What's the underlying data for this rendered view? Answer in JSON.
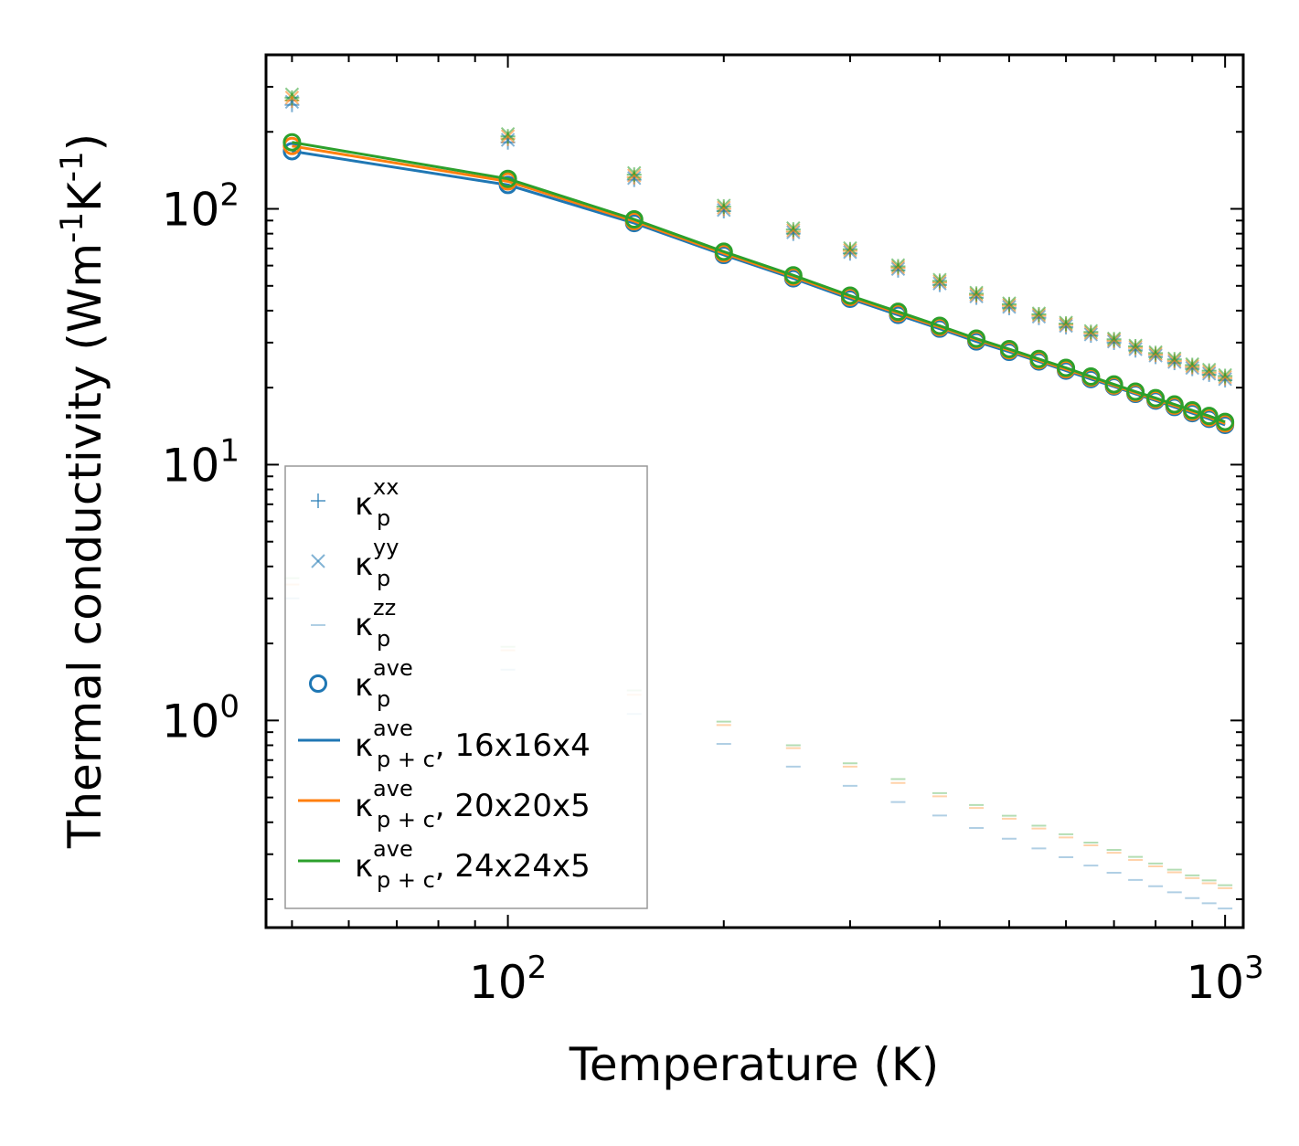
{
  "chart_data": {
    "type": "scatter",
    "scale": {
      "x": "log",
      "y": "log"
    },
    "xlim": [
      46,
      1060
    ],
    "ylim": [
      0.155,
      400
    ],
    "xlabel": "Temperature (K)",
    "ylabel": "Thermal conductivity (Wm",
    "ylabel_unit_parts": [
      "-1",
      "K",
      "-1",
      ")"
    ],
    "x_ticks": [
      {
        "value": 100,
        "base": "10",
        "exp": "2"
      },
      {
        "value": 1000,
        "base": "10",
        "exp": "3"
      }
    ],
    "y_ticks": [
      {
        "value": 1,
        "base": "10",
        "exp": "0"
      },
      {
        "value": 10,
        "base": "10",
        "exp": "1"
      },
      {
        "value": 100,
        "base": "10",
        "exp": "2"
      }
    ],
    "temperatures": [
      50,
      100,
      150,
      200,
      250,
      300,
      350,
      400,
      450,
      500,
      550,
      600,
      650,
      700,
      750,
      800,
      850,
      900,
      950,
      1000
    ],
    "ave_series": [
      {
        "name": "16x16x4",
        "color": "#1f77b4",
        "values": [
          168,
          124,
          88,
          66,
          53.5,
          44.5,
          38.5,
          34,
          30.3,
          27.6,
          25.3,
          23.3,
          21.6,
          20.2,
          18.9,
          17.8,
          16.8,
          15.9,
          15.1,
          14.3
        ]
      },
      {
        "name": "20x20x5",
        "color": "#ff7f0e",
        "values": [
          176,
          128,
          89.5,
          67,
          54.3,
          45.2,
          39.1,
          34.5,
          30.8,
          28,
          25.6,
          23.6,
          21.9,
          20.4,
          19.1,
          18,
          17,
          16.1,
          15.3,
          14.5
        ]
      },
      {
        "name": "24x24x5",
        "color": "#2ca02c",
        "values": [
          182,
          131,
          91,
          68,
          55,
          45.8,
          39.6,
          34.9,
          31.1,
          28.3,
          25.9,
          23.9,
          22.1,
          20.6,
          19.3,
          18.2,
          17.2,
          16.3,
          15.5,
          14.7
        ]
      }
    ],
    "kxx": [
      [
        255,
        182,
        130,
        98,
        80,
        67,
        57.5,
        50.5,
        45,
        41,
        37.5,
        34.5,
        32,
        30,
        28,
        26.4,
        25,
        23.7,
        22.5,
        21.4
      ],
      [
        265,
        188,
        133,
        100,
        81.5,
        68.5,
        58.8,
        51.6,
        46,
        41.8,
        38.2,
        35.2,
        32.6,
        30.5,
        28.6,
        26.9,
        25.4,
        24.1,
        22.9,
        21.8
      ],
      [
        272,
        192,
        136,
        102,
        83,
        69.5,
        59.6,
        52.3,
        46.6,
        42.4,
        38.7,
        35.6,
        33,
        30.9,
        29,
        27.3,
        25.8,
        24.5,
        23.3,
        22.2
      ]
    ],
    "kyy": [
      [
        262,
        186,
        132,
        99,
        81,
        67.8,
        58.2,
        51.1,
        45.5,
        41.4,
        37.9,
        34.9,
        32.3,
        30.3,
        28.3,
        26.7,
        25.2,
        23.9,
        22.7,
        21.6
      ],
      [
        272,
        192,
        135,
        101,
        82.5,
        69,
        59.2,
        52,
        46.3,
        42.1,
        38.5,
        35.4,
        32.8,
        30.7,
        28.8,
        27.1,
        25.6,
        24.3,
        23.1,
        22
      ],
      [
        280,
        196,
        138,
        103,
        84,
        70.2,
        60.2,
        52.8,
        47,
        42.7,
        39,
        35.9,
        33.3,
        31.1,
        29.2,
        27.5,
        26,
        24.7,
        23.5,
        22.4
      ]
    ],
    "kzz": [
      [
        3.0,
        1.58,
        1.06,
        0.81,
        0.66,
        0.555,
        0.48,
        0.425,
        0.38,
        0.345,
        0.316,
        0.292,
        0.271,
        0.254,
        0.238,
        0.225,
        0.213,
        0.202,
        0.193,
        0.184
      ],
      [
        3.4,
        1.88,
        1.26,
        0.96,
        0.78,
        0.66,
        0.57,
        0.505,
        0.455,
        0.413,
        0.378,
        0.349,
        0.325,
        0.304,
        0.285,
        0.269,
        0.255,
        0.242,
        0.231,
        0.221
      ],
      [
        3.6,
        1.94,
        1.31,
        0.99,
        0.8,
        0.68,
        0.59,
        0.52,
        0.467,
        0.424,
        0.388,
        0.359,
        0.333,
        0.312,
        0.293,
        0.276,
        0.261,
        0.248,
        0.237,
        0.227
      ]
    ],
    "legend": [
      {
        "marker": "plus",
        "label": "κ",
        "sub": "p",
        "sup": "xx",
        "suffix": ""
      },
      {
        "marker": "x",
        "label": "κ",
        "sub": "p",
        "sup": "yy",
        "suffix": ""
      },
      {
        "marker": "dash",
        "label": "κ",
        "sub": "p",
        "sup": "zz",
        "suffix": ""
      },
      {
        "marker": "circle",
        "label": "κ",
        "sub": "p",
        "sup": "ave",
        "suffix": ""
      },
      {
        "marker": "line",
        "color": "#1f77b4",
        "label": "κ",
        "sub": "p + c",
        "sup": "ave",
        "suffix": ", 16x16x4"
      },
      {
        "marker": "line",
        "color": "#ff7f0e",
        "label": "κ",
        "sub": "p + c",
        "sup": "ave",
        "suffix": ", 20x20x5"
      },
      {
        "marker": "line",
        "color": "#2ca02c",
        "label": "κ",
        "sub": "p + c",
        "sup": "ave",
        "suffix": ", 24x24x5"
      }
    ],
    "legend_position": "lower-left"
  }
}
